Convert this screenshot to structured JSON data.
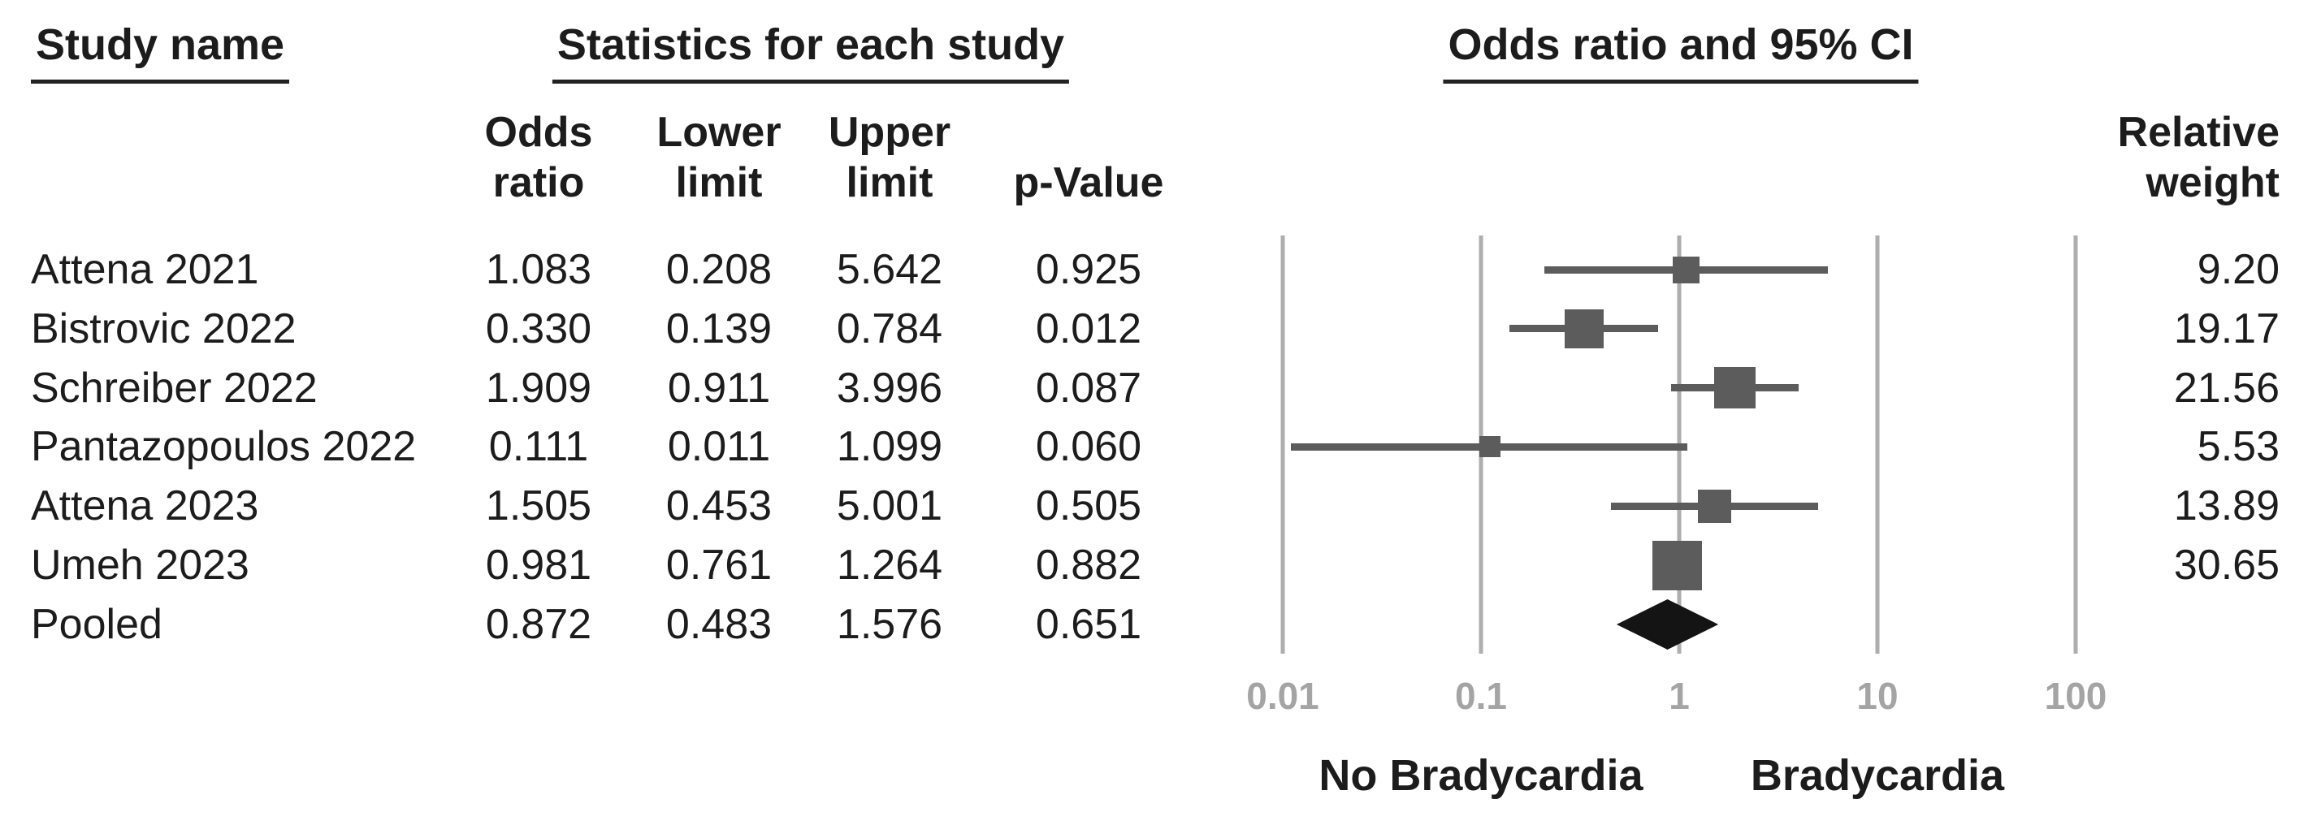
{
  "figure": {
    "headers": {
      "study_name": "Study name",
      "statistics": "Statistics for each study",
      "or_ci": "Odds ratio and 95% CI"
    },
    "columns": {
      "odds_ratio": [
        "Odds",
        "ratio"
      ],
      "lower_limit": [
        "Lower",
        "limit"
      ],
      "upper_limit": [
        "Upper",
        "limit"
      ],
      "p_value": "p-Value",
      "relative_weight": [
        "Relative",
        "weight"
      ]
    },
    "colors": {
      "text": "#1c1c1c",
      "marker": "#5c5c5c",
      "ci_line": "#5c5c5c",
      "gridline": "#aeaeae",
      "tick_label": "#a4a4a4",
      "diamond": "#141414",
      "underline": "#222222"
    }
  },
  "chart_data": {
    "type": "forest",
    "title": "Odds ratio and 95% CI",
    "x_scale": "log",
    "x_range": [
      0.01,
      100
    ],
    "x_ticks": [
      "0.01",
      "0.1",
      "1",
      "10",
      "100"
    ],
    "x_axis_left_label": "No Bradycardia",
    "x_axis_right_label": "Bradycardia",
    "grid": true,
    "studies": [
      {
        "name": "Attena 2021",
        "odds_ratio": "1.083",
        "lower_limit": "0.208",
        "upper_limit": "5.642",
        "p_value": "0.925",
        "relative_weight": "9.20",
        "marker": "square"
      },
      {
        "name": "Bistrovic 2022",
        "odds_ratio": "0.330",
        "lower_limit": "0.139",
        "upper_limit": "0.784",
        "p_value": "0.012",
        "relative_weight": "19.17",
        "marker": "square"
      },
      {
        "name": "Schreiber 2022",
        "odds_ratio": "1.909",
        "lower_limit": "0.911",
        "upper_limit": "3.996",
        "p_value": "0.087",
        "relative_weight": "21.56",
        "marker": "square"
      },
      {
        "name": "Pantazopoulos 2022",
        "odds_ratio": "0.111",
        "lower_limit": "0.011",
        "upper_limit": "1.099",
        "p_value": "0.060",
        "relative_weight": "5.53",
        "marker": "square"
      },
      {
        "name": "Attena 2023",
        "odds_ratio": "1.505",
        "lower_limit": "0.453",
        "upper_limit": "5.001",
        "p_value": "0.505",
        "relative_weight": "13.89",
        "marker": "square"
      },
      {
        "name": "Umeh 2023",
        "odds_ratio": "0.981",
        "lower_limit": "0.761",
        "upper_limit": "1.264",
        "p_value": "0.882",
        "relative_weight": "30.65",
        "marker": "square"
      },
      {
        "name": "Pooled",
        "odds_ratio": "0.872",
        "lower_limit": "0.483",
        "upper_limit": "1.576",
        "p_value": "0.651",
        "relative_weight": "",
        "marker": "diamond"
      }
    ]
  }
}
